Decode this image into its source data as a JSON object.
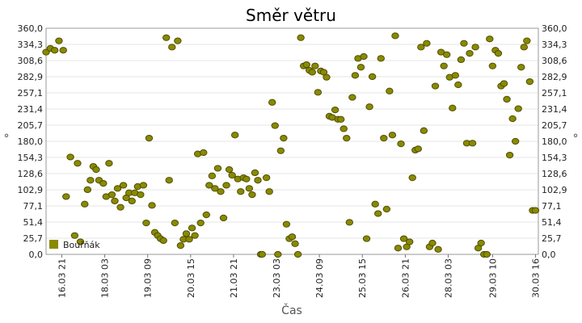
{
  "chart_data": {
    "type": "scatter",
    "title": "Směr větru",
    "xlabel": "Čas",
    "ylabel": "°",
    "ylim": [
      0,
      360
    ],
    "xlim": [
      "2021-03-16 10:00",
      "2021-03-30 18:00"
    ],
    "y_ticks": [
      "0,0",
      "25,7",
      "51,4",
      "77,1",
      "102,9",
      "128,6",
      "154,3",
      "180,0",
      "205,7",
      "231,4",
      "257,1",
      "282,9",
      "308,6",
      "334,3",
      "360,0"
    ],
    "x_ticks": [
      {
        "label": "16.03 21",
        "t": "2021-03-16 21:00"
      },
      {
        "label": "18.03 03",
        "t": "2021-03-18 03:00"
      },
      {
        "label": "19.03 09",
        "t": "2021-03-19 09:00"
      },
      {
        "label": "20.03 15",
        "t": "2021-03-20 15:00"
      },
      {
        "label": "21.03 21",
        "t": "2021-03-21 21:00"
      },
      {
        "label": "23.03 03",
        "t": "2021-03-23 03:00"
      },
      {
        "label": "24.03 09",
        "t": "2021-03-24 09:00"
      },
      {
        "label": "25.03 15",
        "t": "2021-03-25 15:00"
      },
      {
        "label": "26.03 21",
        "t": "2021-03-26 21:00"
      },
      {
        "label": "28.03 03",
        "t": "2021-03-28 03:00"
      },
      {
        "label": "29.03 10",
        "t": "2021-03-29 10:00"
      },
      {
        "label": "30.03 16",
        "t": "2021-03-30 16:00"
      }
    ],
    "grid": true,
    "legend": "bottom-left",
    "series": [
      {
        "name": "Bouřňák",
        "color": "#8a8a00",
        "points": [
          [
            "2021-03-16 10:00",
            322
          ],
          [
            "2021-03-16 13:00",
            328
          ],
          [
            "2021-03-16 16:00",
            325
          ],
          [
            "2021-03-16 19:00",
            340
          ],
          [
            "2021-03-16 22:00",
            325
          ],
          [
            "2021-03-17 00:00",
            92
          ],
          [
            "2021-03-17 03:00",
            155
          ],
          [
            "2021-03-17 06:00",
            30
          ],
          [
            "2021-03-17 08:00",
            145
          ],
          [
            "2021-03-17 10:00",
            20
          ],
          [
            "2021-03-17 13:00",
            80
          ],
          [
            "2021-03-17 15:00",
            103
          ],
          [
            "2021-03-17 17:00",
            118
          ],
          [
            "2021-03-17 19:00",
            140
          ],
          [
            "2021-03-17 21:00",
            135
          ],
          [
            "2021-03-17 23:00",
            118
          ],
          [
            "2021-03-18 02:00",
            113
          ],
          [
            "2021-03-18 04:00",
            92
          ],
          [
            "2021-03-18 06:00",
            145
          ],
          [
            "2021-03-18 08:00",
            95
          ],
          [
            "2021-03-18 10:00",
            85
          ],
          [
            "2021-03-18 12:00",
            105
          ],
          [
            "2021-03-18 14:00",
            75
          ],
          [
            "2021-03-18 16:00",
            110
          ],
          [
            "2021-03-18 18:00",
            90
          ],
          [
            "2021-03-18 20:00",
            98
          ],
          [
            "2021-03-18 22:00",
            85
          ],
          [
            "2021-03-19 00:00",
            98
          ],
          [
            "2021-03-19 02:00",
            108
          ],
          [
            "2021-03-19 04:00",
            95
          ],
          [
            "2021-03-19 06:00",
            110
          ],
          [
            "2021-03-19 08:00",
            50
          ],
          [
            "2021-03-19 10:00",
            185
          ],
          [
            "2021-03-19 12:00",
            78
          ],
          [
            "2021-03-19 14:00",
            35
          ],
          [
            "2021-03-19 16:00",
            30
          ],
          [
            "2021-03-19 18:00",
            25
          ],
          [
            "2021-03-19 20:00",
            22
          ],
          [
            "2021-03-19 22:00",
            345
          ],
          [
            "2021-03-20 00:00",
            118
          ],
          [
            "2021-03-20 02:00",
            330
          ],
          [
            "2021-03-20 04:00",
            50
          ],
          [
            "2021-03-20 06:00",
            340
          ],
          [
            "2021-03-20 08:00",
            14
          ],
          [
            "2021-03-20 10:00",
            24
          ],
          [
            "2021-03-20 12:00",
            33
          ],
          [
            "2021-03-20 14:00",
            24
          ],
          [
            "2021-03-20 16:00",
            42
          ],
          [
            "2021-03-20 18:00",
            30
          ],
          [
            "2021-03-20 20:00",
            160
          ],
          [
            "2021-03-20 22:00",
            50
          ],
          [
            "2021-03-21 00:00",
            162
          ],
          [
            "2021-03-21 02:00",
            63
          ],
          [
            "2021-03-21 04:00",
            110
          ],
          [
            "2021-03-21 06:00",
            125
          ],
          [
            "2021-03-21 08:00",
            105
          ],
          [
            "2021-03-21 10:00",
            137
          ],
          [
            "2021-03-21 12:00",
            100
          ],
          [
            "2021-03-21 14:00",
            58
          ],
          [
            "2021-03-21 16:00",
            110
          ],
          [
            "2021-03-21 18:00",
            135
          ],
          [
            "2021-03-21 20:00",
            126
          ],
          [
            "2021-03-21 22:00",
            190
          ],
          [
            "2021-03-22 00:00",
            120
          ],
          [
            "2021-03-22 02:00",
            100
          ],
          [
            "2021-03-22 04:00",
            122
          ],
          [
            "2021-03-22 06:00",
            120
          ],
          [
            "2021-03-22 08:00",
            105
          ],
          [
            "2021-03-22 10:00",
            95
          ],
          [
            "2021-03-22 12:00",
            130
          ],
          [
            "2021-03-22 14:00",
            118
          ],
          [
            "2021-03-22 16:00",
            0
          ],
          [
            "2021-03-22 17:00",
            0
          ],
          [
            "2021-03-22 20:00",
            122
          ],
          [
            "2021-03-22 22:00",
            100
          ],
          [
            "2021-03-23 00:00",
            242
          ],
          [
            "2021-03-23 02:00",
            205
          ],
          [
            "2021-03-23 04:00",
            0
          ],
          [
            "2021-03-23 06:00",
            165
          ],
          [
            "2021-03-23 08:00",
            185
          ],
          [
            "2021-03-23 10:00",
            48
          ],
          [
            "2021-03-23 12:00",
            25
          ],
          [
            "2021-03-23 14:00",
            28
          ],
          [
            "2021-03-23 16:00",
            17
          ],
          [
            "2021-03-23 18:00",
            0
          ],
          [
            "2021-03-23 20:00",
            345
          ],
          [
            "2021-03-23 22:00",
            300
          ],
          [
            "2021-03-24 00:00",
            302
          ],
          [
            "2021-03-24 02:00",
            293
          ],
          [
            "2021-03-24 04:00",
            290
          ],
          [
            "2021-03-24 06:00",
            300
          ],
          [
            "2021-03-24 08:00",
            258
          ],
          [
            "2021-03-24 10:00",
            292
          ],
          [
            "2021-03-24 12:00",
            290
          ],
          [
            "2021-03-24 14:00",
            282
          ],
          [
            "2021-03-24 16:00",
            220
          ],
          [
            "2021-03-24 18:00",
            218
          ],
          [
            "2021-03-24 20:00",
            230
          ],
          [
            "2021-03-24 22:00",
            215
          ],
          [
            "2021-03-25 00:00",
            215
          ],
          [
            "2021-03-25 02:00",
            200
          ],
          [
            "2021-03-25 04:00",
            185
          ],
          [
            "2021-03-25 06:00",
            51
          ],
          [
            "2021-03-25 08:00",
            250
          ],
          [
            "2021-03-25 10:00",
            285
          ],
          [
            "2021-03-25 12:00",
            312
          ],
          [
            "2021-03-25 14:00",
            298
          ],
          [
            "2021-03-25 16:00",
            315
          ],
          [
            "2021-03-25 18:00",
            25
          ],
          [
            "2021-03-25 20:00",
            235
          ],
          [
            "2021-03-25 22:00",
            283
          ],
          [
            "2021-03-26 00:00",
            80
          ],
          [
            "2021-03-26 02:00",
            65
          ],
          [
            "2021-03-26 04:00",
            312
          ],
          [
            "2021-03-26 06:00",
            185
          ],
          [
            "2021-03-26 08:00",
            72
          ],
          [
            "2021-03-26 10:00",
            260
          ],
          [
            "2021-03-26 12:00",
            190
          ],
          [
            "2021-03-26 14:00",
            348
          ],
          [
            "2021-03-26 16:00",
            10
          ],
          [
            "2021-03-26 18:00",
            176
          ],
          [
            "2021-03-26 20:00",
            25
          ],
          [
            "2021-03-26 22:00",
            12
          ],
          [
            "2021-03-27 00:00",
            20
          ],
          [
            "2021-03-27 02:00",
            122
          ],
          [
            "2021-03-27 04:00",
            166
          ],
          [
            "2021-03-27 06:00",
            168
          ],
          [
            "2021-03-27 08:00",
            330
          ],
          [
            "2021-03-27 10:00",
            197
          ],
          [
            "2021-03-27 12:00",
            336
          ],
          [
            "2021-03-27 14:00",
            12
          ],
          [
            "2021-03-27 16:00",
            18
          ],
          [
            "2021-03-27 18:00",
            268
          ],
          [
            "2021-03-27 20:00",
            8
          ],
          [
            "2021-03-27 22:00",
            322
          ],
          [
            "2021-03-28 00:00",
            300
          ],
          [
            "2021-03-28 02:00",
            318
          ],
          [
            "2021-03-28 04:00",
            282
          ],
          [
            "2021-03-28 06:00",
            233
          ],
          [
            "2021-03-28 08:00",
            285
          ],
          [
            "2021-03-28 10:00",
            270
          ],
          [
            "2021-03-28 12:00",
            310
          ],
          [
            "2021-03-28 14:00",
            336
          ],
          [
            "2021-03-28 16:00",
            177
          ],
          [
            "2021-03-28 18:00",
            320
          ],
          [
            "2021-03-28 20:00",
            177
          ],
          [
            "2021-03-28 22:00",
            330
          ],
          [
            "2021-03-29 00:00",
            10
          ],
          [
            "2021-03-29 02:00",
            18
          ],
          [
            "2021-03-29 04:00",
            0
          ],
          [
            "2021-03-29 06:00",
            0
          ],
          [
            "2021-03-29 08:00",
            343
          ],
          [
            "2021-03-29 10:00",
            300
          ],
          [
            "2021-03-29 12:00",
            325
          ],
          [
            "2021-03-29 14:00",
            320
          ],
          [
            "2021-03-29 16:00",
            268
          ],
          [
            "2021-03-29 18:00",
            272
          ],
          [
            "2021-03-29 20:00",
            247
          ],
          [
            "2021-03-29 22:00",
            158
          ],
          [
            "2021-03-30 00:00",
            216
          ],
          [
            "2021-03-30 02:00",
            180
          ],
          [
            "2021-03-30 04:00",
            232
          ],
          [
            "2021-03-30 06:00",
            298
          ],
          [
            "2021-03-30 08:00",
            330
          ],
          [
            "2021-03-30 10:00",
            340
          ],
          [
            "2021-03-30 12:00",
            275
          ],
          [
            "2021-03-30 14:00",
            70
          ],
          [
            "2021-03-30 16:00",
            70
          ]
        ]
      }
    ]
  }
}
